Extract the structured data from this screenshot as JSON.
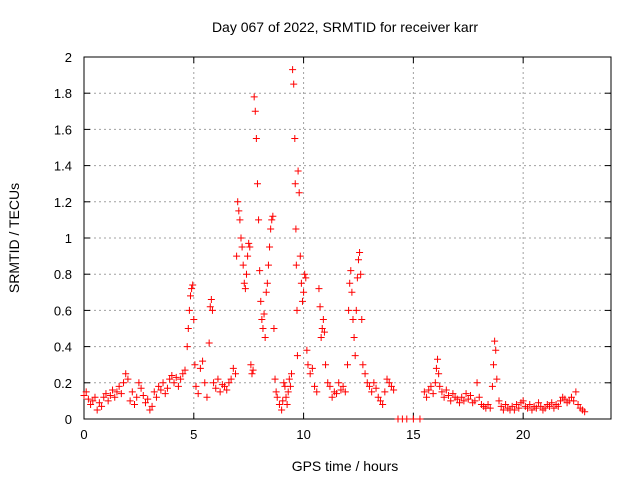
{
  "chart_data": {
    "type": "scatter",
    "title": "Day 067 of 2022, SRMTID for receiver karr",
    "xlabel": "GPS time / hours",
    "ylabel": "SRMTID / TECUs",
    "xlim": [
      0,
      24
    ],
    "ylim": [
      0,
      2
    ],
    "xticks": [
      0,
      5,
      10,
      15,
      20
    ],
    "xtick_labels": [
      "0",
      "5",
      "10",
      "15",
      "20"
    ],
    "yticks": [
      0,
      0.2,
      0.4,
      0.6,
      0.8,
      1,
      1.2,
      1.4,
      1.6,
      1.8,
      2
    ],
    "ytick_labels": [
      "0",
      "0.2",
      "0.4",
      "0.6",
      "0.8",
      "1",
      "1.2",
      "1.4",
      "1.6",
      "1.8",
      "2"
    ],
    "grid": true,
    "marker": "+",
    "color": "#ff0000",
    "series": [
      {
        "name": "SRMTID",
        "points": [
          [
            0.0,
            0.13
          ],
          [
            0.1,
            0.15
          ],
          [
            0.2,
            0.11
          ],
          [
            0.3,
            0.08
          ],
          [
            0.4,
            0.1
          ],
          [
            0.5,
            0.12
          ],
          [
            0.6,
            0.05
          ],
          [
            0.7,
            0.09
          ],
          [
            0.8,
            0.07
          ],
          [
            0.9,
            0.12
          ],
          [
            1.0,
            0.14
          ],
          [
            1.1,
            0.1
          ],
          [
            1.2,
            0.13
          ],
          [
            1.3,
            0.16
          ],
          [
            1.4,
            0.12
          ],
          [
            1.5,
            0.15
          ],
          [
            1.6,
            0.18
          ],
          [
            1.7,
            0.14
          ],
          [
            1.8,
            0.2
          ],
          [
            1.9,
            0.25
          ],
          [
            2.0,
            0.22
          ],
          [
            2.1,
            0.1
          ],
          [
            2.2,
            0.15
          ],
          [
            2.3,
            0.08
          ],
          [
            2.4,
            0.12
          ],
          [
            2.5,
            0.2
          ],
          [
            2.6,
            0.17
          ],
          [
            2.7,
            0.13
          ],
          [
            2.8,
            0.09
          ],
          [
            2.9,
            0.11
          ],
          [
            3.0,
            0.05
          ],
          [
            3.1,
            0.07
          ],
          [
            3.2,
            0.15
          ],
          [
            3.3,
            0.12
          ],
          [
            3.4,
            0.18
          ],
          [
            3.5,
            0.16
          ],
          [
            3.6,
            0.2
          ],
          [
            3.7,
            0.14
          ],
          [
            3.8,
            0.17
          ],
          [
            3.9,
            0.22
          ],
          [
            4.0,
            0.24
          ],
          [
            4.1,
            0.2
          ],
          [
            4.2,
            0.23
          ],
          [
            4.3,
            0.18
          ],
          [
            4.4,
            0.22
          ],
          [
            4.5,
            0.25
          ],
          [
            4.6,
            0.27
          ],
          [
            4.7,
            0.4
          ],
          [
            4.75,
            0.5
          ],
          [
            4.8,
            0.6
          ],
          [
            4.85,
            0.68
          ],
          [
            4.9,
            0.72
          ],
          [
            4.95,
            0.74
          ],
          [
            5.0,
            0.55
          ],
          [
            5.05,
            0.3
          ],
          [
            5.1,
            0.18
          ],
          [
            5.2,
            0.14
          ],
          [
            5.3,
            0.28
          ],
          [
            5.4,
            0.32
          ],
          [
            5.5,
            0.2
          ],
          [
            5.6,
            0.12
          ],
          [
            5.7,
            0.42
          ],
          [
            5.75,
            0.62
          ],
          [
            5.8,
            0.66
          ],
          [
            5.85,
            0.6
          ],
          [
            5.9,
            0.2
          ],
          [
            6.0,
            0.17
          ],
          [
            6.1,
            0.22
          ],
          [
            6.2,
            0.15
          ],
          [
            6.3,
            0.19
          ],
          [
            6.4,
            0.18
          ],
          [
            6.5,
            0.16
          ],
          [
            6.6,
            0.2
          ],
          [
            6.7,
            0.22
          ],
          [
            6.8,
            0.28
          ],
          [
            6.9,
            0.25
          ],
          [
            6.95,
            0.9
          ],
          [
            7.0,
            1.2
          ],
          [
            7.05,
            1.15
          ],
          [
            7.1,
            1.1
          ],
          [
            7.15,
            1.0
          ],
          [
            7.2,
            0.95
          ],
          [
            7.25,
            0.85
          ],
          [
            7.3,
            0.75
          ],
          [
            7.35,
            0.72
          ],
          [
            7.4,
            0.8
          ],
          [
            7.45,
            0.9
          ],
          [
            7.5,
            0.97
          ],
          [
            7.55,
            0.95
          ],
          [
            7.6,
            0.3
          ],
          [
            7.65,
            0.25
          ],
          [
            7.7,
            0.27
          ],
          [
            7.75,
            1.78
          ],
          [
            7.8,
            1.7
          ],
          [
            7.85,
            1.55
          ],
          [
            7.9,
            1.3
          ],
          [
            7.95,
            1.1
          ],
          [
            8.0,
            0.82
          ],
          [
            8.05,
            0.65
          ],
          [
            8.1,
            0.55
          ],
          [
            8.15,
            0.5
          ],
          [
            8.2,
            0.58
          ],
          [
            8.25,
            0.45
          ],
          [
            8.3,
            0.7
          ],
          [
            8.35,
            0.75
          ],
          [
            8.4,
            0.85
          ],
          [
            8.45,
            0.95
          ],
          [
            8.5,
            1.05
          ],
          [
            8.55,
            1.1
          ],
          [
            8.6,
            1.12
          ],
          [
            8.65,
            0.5
          ],
          [
            8.7,
            0.22
          ],
          [
            8.75,
            0.15
          ],
          [
            8.8,
            0.12
          ],
          [
            8.9,
            0.08
          ],
          [
            9.0,
            0.05
          ],
          [
            9.05,
            0.1
          ],
          [
            9.1,
            0.2
          ],
          [
            9.15,
            0.18
          ],
          [
            9.2,
            0.12
          ],
          [
            9.25,
            0.08
          ],
          [
            9.3,
            0.15
          ],
          [
            9.35,
            0.22
          ],
          [
            9.4,
            0.18
          ],
          [
            9.45,
            0.25
          ],
          [
            9.5,
            1.93
          ],
          [
            9.55,
            1.85
          ],
          [
            9.6,
            1.55
          ],
          [
            9.62,
            1.3
          ],
          [
            9.65,
            1.05
          ],
          [
            9.67,
            0.85
          ],
          [
            9.7,
            0.6
          ],
          [
            9.72,
            0.35
          ],
          [
            9.75,
            1.37
          ],
          [
            9.8,
            1.25
          ],
          [
            9.85,
            0.9
          ],
          [
            9.9,
            0.75
          ],
          [
            9.95,
            0.65
          ],
          [
            10.0,
            0.7
          ],
          [
            10.05,
            0.8
          ],
          [
            10.1,
            0.78
          ],
          [
            10.15,
            0.38
          ],
          [
            10.2,
            0.3
          ],
          [
            10.3,
            0.25
          ],
          [
            10.4,
            0.28
          ],
          [
            10.5,
            0.18
          ],
          [
            10.6,
            0.15
          ],
          [
            10.7,
            0.72
          ],
          [
            10.75,
            0.62
          ],
          [
            10.8,
            0.45
          ],
          [
            10.85,
            0.5
          ],
          [
            10.9,
            0.55
          ],
          [
            10.95,
            0.48
          ],
          [
            11.0,
            0.3
          ],
          [
            11.1,
            0.2
          ],
          [
            11.2,
            0.18
          ],
          [
            11.3,
            0.12
          ],
          [
            11.4,
            0.15
          ],
          [
            11.5,
            0.14
          ],
          [
            11.6,
            0.2
          ],
          [
            11.7,
            0.16
          ],
          [
            11.8,
            0.18
          ],
          [
            11.9,
            0.15
          ],
          [
            12.0,
            0.3
          ],
          [
            12.05,
            0.6
          ],
          [
            12.1,
            0.75
          ],
          [
            12.15,
            0.82
          ],
          [
            12.2,
            0.7
          ],
          [
            12.25,
            0.55
          ],
          [
            12.3,
            0.45
          ],
          [
            12.35,
            0.35
          ],
          [
            12.4,
            0.6
          ],
          [
            12.45,
            0.78
          ],
          [
            12.5,
            0.88
          ],
          [
            12.55,
            0.92
          ],
          [
            12.6,
            0.8
          ],
          [
            12.65,
            0.55
          ],
          [
            12.7,
            0.3
          ],
          [
            12.8,
            0.25
          ],
          [
            12.9,
            0.2
          ],
          [
            13.0,
            0.18
          ],
          [
            13.1,
            0.15
          ],
          [
            13.2,
            0.2
          ],
          [
            13.3,
            0.17
          ],
          [
            13.4,
            0.12
          ],
          [
            13.5,
            0.1
          ],
          [
            13.6,
            0.08
          ],
          [
            13.7,
            0.15
          ],
          [
            13.8,
            0.22
          ],
          [
            13.9,
            0.2
          ],
          [
            14.0,
            0.18
          ],
          [
            14.1,
            0.16
          ],
          [
            14.3,
            0.0
          ],
          [
            14.5,
            0.0
          ],
          [
            14.7,
            0.0
          ],
          [
            15.0,
            0.0
          ],
          [
            15.3,
            0.0
          ],
          [
            15.5,
            0.15
          ],
          [
            15.6,
            0.12
          ],
          [
            15.7,
            0.16
          ],
          [
            15.8,
            0.18
          ],
          [
            15.9,
            0.14
          ],
          [
            16.0,
            0.2
          ],
          [
            16.05,
            0.28
          ],
          [
            16.1,
            0.33
          ],
          [
            16.15,
            0.25
          ],
          [
            16.2,
            0.18
          ],
          [
            16.3,
            0.15
          ],
          [
            16.4,
            0.12
          ],
          [
            16.5,
            0.16
          ],
          [
            16.6,
            0.13
          ],
          [
            16.7,
            0.1
          ],
          [
            16.8,
            0.14
          ],
          [
            16.9,
            0.12
          ],
          [
            17.0,
            0.11
          ],
          [
            17.1,
            0.09
          ],
          [
            17.2,
            0.12
          ],
          [
            17.3,
            0.1
          ],
          [
            17.4,
            0.14
          ],
          [
            17.5,
            0.11
          ],
          [
            17.6,
            0.13
          ],
          [
            17.7,
            0.09
          ],
          [
            17.8,
            0.1
          ],
          [
            17.9,
            0.2
          ],
          [
            18.0,
            0.12
          ],
          [
            18.1,
            0.08
          ],
          [
            18.2,
            0.07
          ],
          [
            18.3,
            0.06
          ],
          [
            18.4,
            0.08
          ],
          [
            18.5,
            0.06
          ],
          [
            18.6,
            0.18
          ],
          [
            18.65,
            0.3
          ],
          [
            18.7,
            0.43
          ],
          [
            18.75,
            0.38
          ],
          [
            18.8,
            0.22
          ],
          [
            18.9,
            0.1
          ],
          [
            19.0,
            0.07
          ],
          [
            19.1,
            0.05
          ],
          [
            19.2,
            0.08
          ],
          [
            19.3,
            0.06
          ],
          [
            19.4,
            0.05
          ],
          [
            19.5,
            0.07
          ],
          [
            19.6,
            0.05
          ],
          [
            19.7,
            0.08
          ],
          [
            19.8,
            0.06
          ],
          [
            19.9,
            0.09
          ],
          [
            20.0,
            0.1
          ],
          [
            20.1,
            0.07
          ],
          [
            20.2,
            0.06
          ],
          [
            20.3,
            0.08
          ],
          [
            20.4,
            0.05
          ],
          [
            20.5,
            0.07
          ],
          [
            20.6,
            0.06
          ],
          [
            20.7,
            0.09
          ],
          [
            20.8,
            0.07
          ],
          [
            20.9,
            0.05
          ],
          [
            21.0,
            0.06
          ],
          [
            21.1,
            0.08
          ],
          [
            21.2,
            0.07
          ],
          [
            21.3,
            0.09
          ],
          [
            21.4,
            0.06
          ],
          [
            21.5,
            0.08
          ],
          [
            21.6,
            0.07
          ],
          [
            21.7,
            0.1
          ],
          [
            21.8,
            0.12
          ],
          [
            21.9,
            0.11
          ],
          [
            22.0,
            0.09
          ],
          [
            22.1,
            0.1
          ],
          [
            22.2,
            0.12
          ],
          [
            22.3,
            0.1
          ],
          [
            22.4,
            0.15
          ],
          [
            22.5,
            0.08
          ],
          [
            22.6,
            0.06
          ],
          [
            22.7,
            0.05
          ],
          [
            22.8,
            0.04
          ]
        ]
      }
    ]
  }
}
